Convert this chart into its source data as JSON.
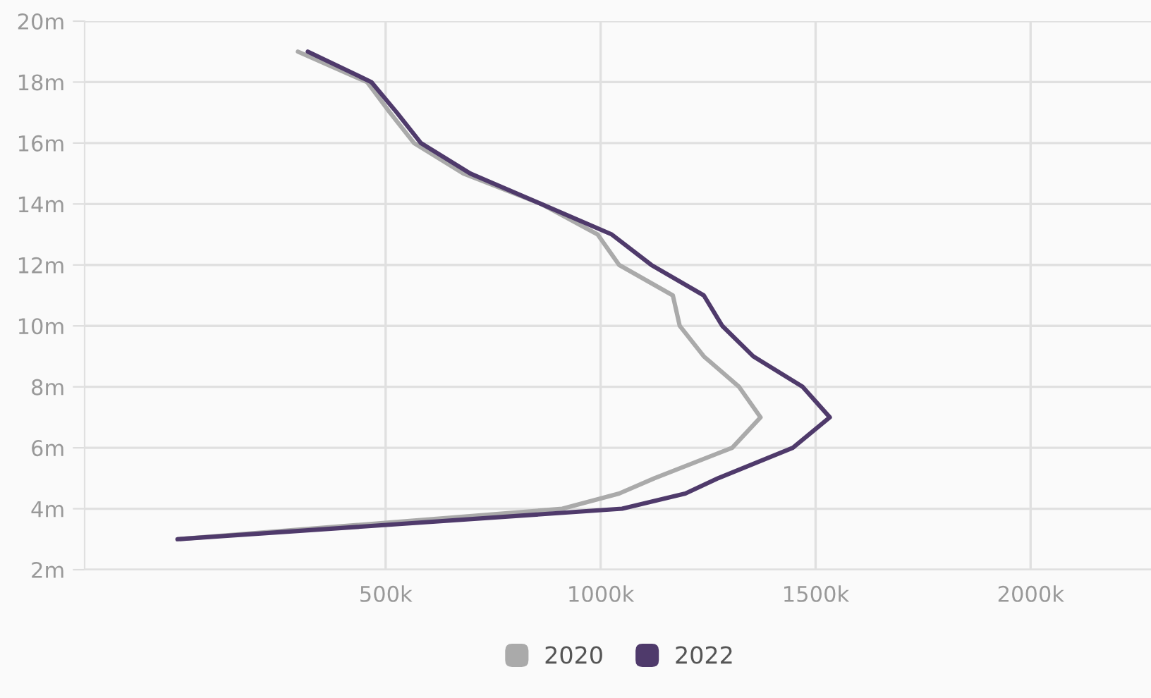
{
  "chart_data": {
    "type": "line",
    "series": [
      {
        "name": "2020",
        "color": "#aaaaaa",
        "x": [
          16,
          911,
          1043,
          1125,
          1306,
          1372,
          1322,
          1240,
          1184,
          1168,
          1043,
          993,
          862,
          681,
          566,
          510,
          457,
          296
        ],
        "values": [
          3,
          4,
          4.5,
          5,
          6,
          7,
          8,
          9,
          10,
          11,
          12,
          13,
          14,
          15,
          16,
          17,
          18,
          19
        ]
      },
      {
        "name": "2022",
        "color": "#4f3a6b",
        "x": [
          16,
          1050,
          1197,
          1273,
          1447,
          1533,
          1470,
          1355,
          1283,
          1240,
          1118,
          1026,
          862,
          697,
          582,
          526,
          467,
          319
        ],
        "values": [
          3,
          4,
          4.5,
          5,
          6,
          7,
          8,
          9,
          10,
          11,
          12,
          13,
          14,
          15,
          16,
          17,
          18,
          19
        ]
      }
    ],
    "xlim": [
      -200,
      2280
    ],
    "xticks": [
      {
        "value": 500,
        "label": "500k"
      },
      {
        "value": 1000,
        "label": "1000k"
      },
      {
        "value": 1500,
        "label": "1500k"
      },
      {
        "value": 2000,
        "label": "2000k"
      }
    ],
    "ylim": [
      2,
      20
    ],
    "yticks": [
      {
        "value": 2,
        "label": "2m"
      },
      {
        "value": 4,
        "label": "4m"
      },
      {
        "value": 6,
        "label": "6m"
      },
      {
        "value": 8,
        "label": "8m"
      },
      {
        "value": 10,
        "label": "10m"
      },
      {
        "value": 12,
        "label": "12m"
      },
      {
        "value": 14,
        "label": "14m"
      },
      {
        "value": 16,
        "label": "16m"
      },
      {
        "value": 18,
        "label": "18m"
      },
      {
        "value": 20,
        "label": "20m"
      }
    ],
    "grid": true,
    "legend": "bottom",
    "marker": "none",
    "line_style": "solid"
  }
}
